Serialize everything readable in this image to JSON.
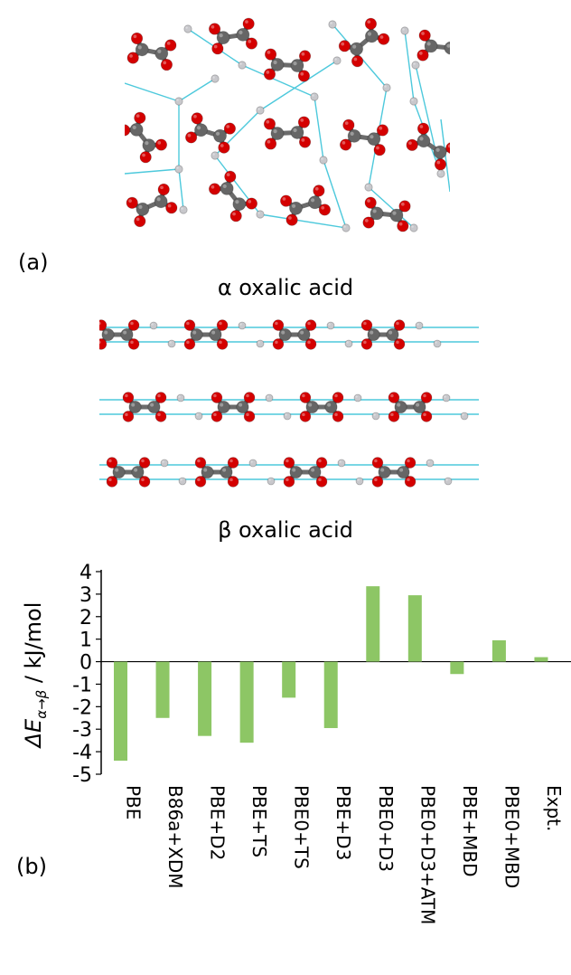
{
  "figure": {
    "label_a": "(a)",
    "label_b": "(b)",
    "caption_alpha": "α oxalic acid",
    "caption_beta": "β oxalic acid"
  },
  "colors": {
    "oxygen": "#d40000",
    "carbon": "#666666",
    "hydrogen": "#c8c8cc",
    "hbond": "#4dc9dc",
    "bar": "#8dc665"
  },
  "chart_data": {
    "type": "bar",
    "categories": [
      "PBE",
      "B86a+XDM",
      "PBE+D2",
      "PBE+TS",
      "PBE0+TS",
      "PBE+D3",
      "PBE0+D3",
      "PBE0+D3+ATM",
      "PBE+MBD",
      "PBE0+MBD",
      "Expt."
    ],
    "values": [
      -4.4,
      -2.5,
      -3.3,
      -3.6,
      -1.6,
      -2.95,
      3.35,
      2.95,
      -0.55,
      0.95,
      0.2
    ],
    "ylabel": "ΔE α→β / kJ/mol",
    "ylim": [
      -5,
      4
    ],
    "yticks": [
      4,
      3,
      2,
      1,
      0,
      -1,
      -2,
      -3,
      -4,
      -5
    ],
    "grid": false
  }
}
